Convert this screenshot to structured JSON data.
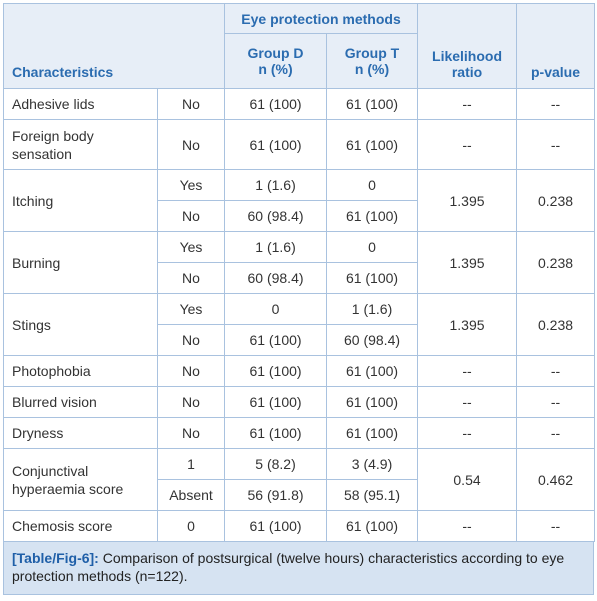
{
  "table": {
    "header": {
      "characteristics": "Characteristics",
      "methods": "Eye protection methods",
      "group_d": [
        "Group D",
        "n (%)"
      ],
      "group_t": [
        "Group T",
        "n (%)"
      ],
      "likelihood": "Likelihood ratio",
      "p_value": "p-value"
    },
    "rows": [
      {
        "name": "Adhesive lids",
        "levels": [
          [
            "No",
            "61 (100)",
            "61 (100)"
          ]
        ],
        "lr": "--",
        "p": "--"
      },
      {
        "name": "Foreign body sensation",
        "levels": [
          [
            "No",
            "61 (100)",
            "61 (100)"
          ]
        ],
        "lr": "--",
        "p": "--"
      },
      {
        "name": "Itching",
        "levels": [
          [
            "Yes",
            "1 (1.6)",
            "0"
          ],
          [
            "No",
            "60 (98.4)",
            "61 (100)"
          ]
        ],
        "lr": "1.395",
        "p": "0.238"
      },
      {
        "name": "Burning",
        "levels": [
          [
            "Yes",
            "1 (1.6)",
            "0"
          ],
          [
            "No",
            "60 (98.4)",
            "61 (100)"
          ]
        ],
        "lr": "1.395",
        "p": "0.238"
      },
      {
        "name": "Stings",
        "levels": [
          [
            "Yes",
            "0",
            "1 (1.6)"
          ],
          [
            "No",
            "61 (100)",
            "60 (98.4)"
          ]
        ],
        "lr": "1.395",
        "p": "0.238"
      },
      {
        "name": "Photophobia",
        "levels": [
          [
            "No",
            "61 (100)",
            "61 (100)"
          ]
        ],
        "lr": "--",
        "p": "--"
      },
      {
        "name": "Blurred vision",
        "levels": [
          [
            "No",
            "61 (100)",
            "61 (100)"
          ]
        ],
        "lr": "--",
        "p": "--"
      },
      {
        "name": "Dryness",
        "levels": [
          [
            "No",
            "61 (100)",
            "61 (100)"
          ]
        ],
        "lr": "--",
        "p": "--"
      },
      {
        "name": "Conjunctival hyperaemia score",
        "levels": [
          [
            "1",
            "5 (8.2)",
            "3 (4.9)"
          ],
          [
            "Absent",
            "56 (91.8)",
            "58 (95.1)"
          ]
        ],
        "lr": "0.54",
        "p": "0.462"
      },
      {
        "name": "Chemosis score",
        "levels": [
          [
            "0",
            "61 (100)",
            "61 (100)"
          ]
        ],
        "lr": "--",
        "p": "--"
      }
    ]
  },
  "caption": {
    "label": "[Table/Fig-6]:",
    "text": "Comparison of postsurgical (twelve hours) characteristics according to eye protection methods (n=122)."
  }
}
